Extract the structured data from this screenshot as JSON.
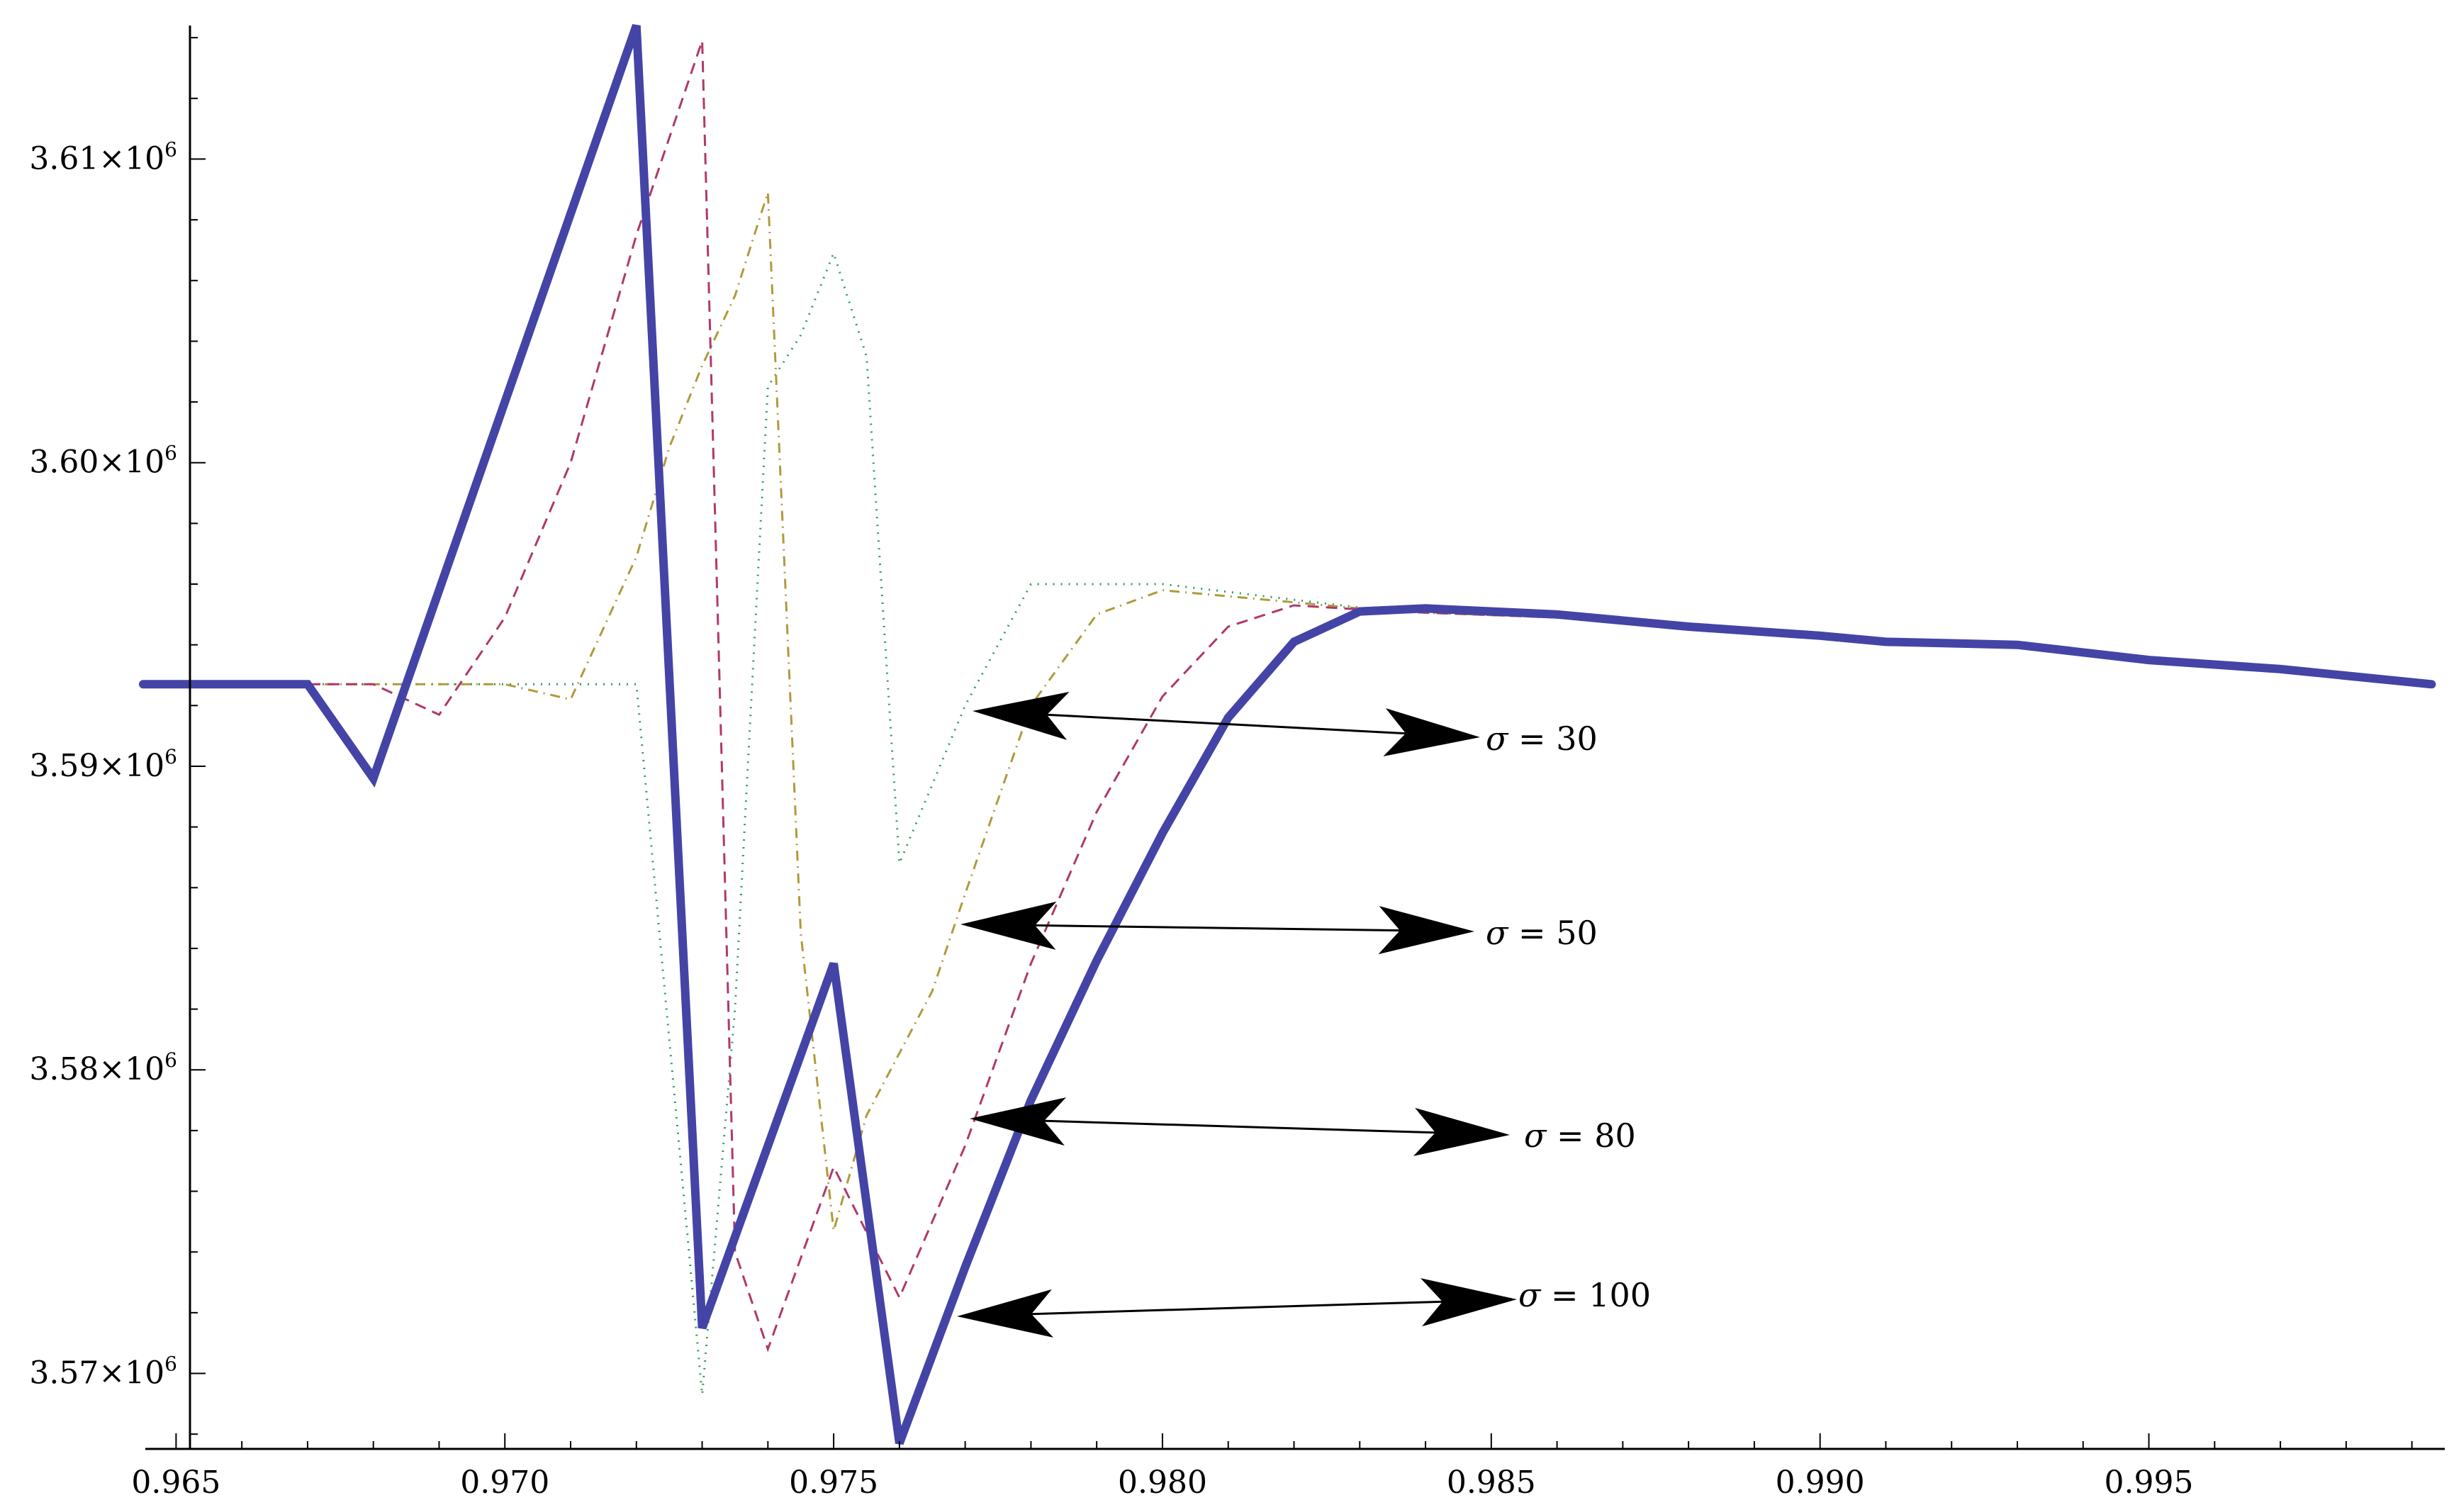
{
  "chart_data": {
    "type": "line",
    "title": "",
    "xlabel": "",
    "ylabel": "",
    "xlim": [
      0.9645,
      0.9995
    ],
    "ylim": [
      3567700,
      3614400
    ],
    "x_ticks": [
      {
        "value": 0.965,
        "label": "0.965"
      },
      {
        "value": 0.97,
        "label": "0.970"
      },
      {
        "value": 0.975,
        "label": "0.975"
      },
      {
        "value": 0.98,
        "label": "0.980"
      },
      {
        "value": 0.985,
        "label": "0.985"
      },
      {
        "value": 0.99,
        "label": "0.990"
      },
      {
        "value": 0.995,
        "label": "0.995"
      }
    ],
    "y_ticks": [
      {
        "value": 3570000,
        "mantissa": "3.57",
        "times": "×",
        "base": "10",
        "exp": "6"
      },
      {
        "value": 3580000,
        "mantissa": "3.58",
        "times": "×",
        "base": "10",
        "exp": "6"
      },
      {
        "value": 3590000,
        "mantissa": "3.59",
        "times": "×",
        "base": "10",
        "exp": "6"
      },
      {
        "value": 3600000,
        "mantissa": "3.60",
        "times": "×",
        "base": "10",
        "exp": "6"
      },
      {
        "value": 3610000,
        "mantissa": "3.61",
        "times": "×",
        "base": "10",
        "exp": "6"
      }
    ],
    "grid": false,
    "legend": "none",
    "series": [
      {
        "color": "#2e9e5e",
        "style": "dotted",
        "width": 3,
        "x": [
          0.9645,
          0.972,
          0.973,
          0.9735,
          0.974,
          0.9745,
          0.975,
          0.9755,
          0.976,
          0.977,
          0.978,
          0.98,
          0.9835,
          0.986,
          0.99,
          0.993,
          0.9993
        ],
        "y": [
          3592700,
          3592700,
          3569300,
          3582000,
          3602500,
          3604200,
          3606900,
          3603500,
          3586800,
          3592000,
          3596000,
          3596000,
          3595100,
          3594900,
          3594300,
          3593900,
          3592700
        ]
      },
      {
        "color": "#b09a3c",
        "style": "dashdot",
        "width": 3,
        "x": [
          0.9645,
          0.97,
          0.971,
          0.972,
          0.9725,
          0.973,
          0.9735,
          0.974,
          0.9745,
          0.975,
          0.9755,
          0.9765,
          0.977,
          0.978,
          0.979,
          0.98,
          0.9835,
          0.986,
          0.99,
          0.993,
          0.9993
        ],
        "y": [
          3592700,
          3592700,
          3592200,
          3596900,
          3600500,
          3603200,
          3605500,
          3608900,
          3584500,
          3574700,
          3578500,
          3582600,
          3585800,
          3592000,
          3595000,
          3595800,
          3595100,
          3594900,
          3594300,
          3593900,
          3592700
        ]
      },
      {
        "color": "#b0386c",
        "style": "dashed",
        "width": 3,
        "x": [
          0.9645,
          0.968,
          0.969,
          0.97,
          0.971,
          0.972,
          0.973,
          0.9735,
          0.974,
          0.975,
          0.976,
          0.977,
          0.978,
          0.979,
          0.98,
          0.981,
          0.982,
          0.9835,
          0.986,
          0.99,
          0.993,
          0.9993
        ],
        "y": [
          3592700,
          3592700,
          3591700,
          3594900,
          3600000,
          3607500,
          3613900,
          3574000,
          3570800,
          3576800,
          3572500,
          3577500,
          3583500,
          3588500,
          3592300,
          3594600,
          3595300,
          3595100,
          3594900,
          3594300,
          3593900,
          3592700
        ]
      },
      {
        "color": "#4444a6",
        "style": "solid",
        "width": 12,
        "x": [
          0.9645,
          0.967,
          0.968,
          0.972,
          0.973,
          0.975,
          0.976,
          0.977,
          0.978,
          0.979,
          0.98,
          0.981,
          0.982,
          0.983,
          0.984,
          0.986,
          0.988,
          0.99,
          0.991,
          0.993,
          0.995,
          0.997,
          0.9993
        ],
        "y": [
          3592700,
          3592700,
          3589600,
          3614400,
          3571500,
          3583500,
          3567700,
          3573500,
          3579000,
          3583600,
          3587800,
          3591600,
          3594100,
          3595100,
          3595200,
          3595000,
          3594600,
          3594300,
          3594100,
          3594000,
          3593500,
          3593200,
          3592700
        ]
      }
    ],
    "annotations": [
      {
        "prefix": "σ",
        "text": " = 30"
      },
      {
        "prefix": "σ",
        "text": " = 50"
      },
      {
        "prefix": "σ",
        "text": " = 80"
      },
      {
        "prefix": "σ",
        "text": " = 100"
      }
    ]
  }
}
